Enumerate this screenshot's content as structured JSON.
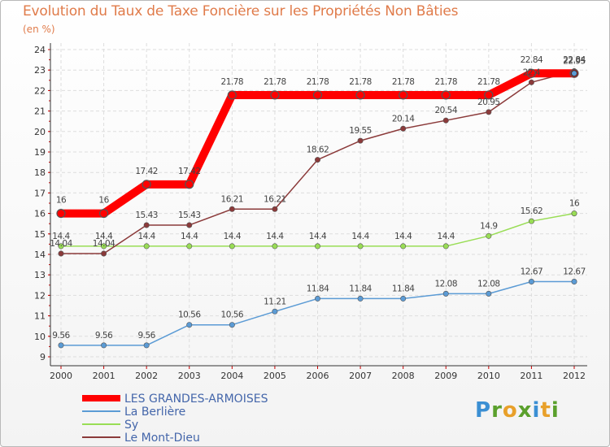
{
  "header": {
    "title": "Evolution du Taux de Taxe Foncière sur les Propriétés Non Bâties",
    "unit": "(en %)"
  },
  "logo": {
    "letters": [
      "P",
      "r",
      "o",
      "x",
      "i",
      "t",
      "i"
    ],
    "colors": [
      "#3b8fd3",
      "#5aa02c",
      "#e8a02a",
      "#5aa02c",
      "#3b8fd3",
      "#e8a02a",
      "#5aa02c"
    ]
  },
  "chart_data": {
    "type": "line",
    "title": "Evolution du Taux de Taxe Foncière sur les Propriétés Non Bâties",
    "ylabel": "(en %)",
    "xlabel": "",
    "categories": [
      "2000",
      "2001",
      "2002",
      "2003",
      "2004",
      "2005",
      "2006",
      "2007",
      "2008",
      "2009",
      "2010",
      "2011",
      "2012"
    ],
    "ylim": [
      9,
      24
    ],
    "yticks": [
      9,
      10,
      11,
      12,
      13,
      14,
      15,
      16,
      17,
      18,
      19,
      20,
      21,
      22,
      23,
      24
    ],
    "grid": true,
    "series": [
      {
        "name": "LES GRANDES-ARMOISES",
        "color": "#ff0000",
        "values": [
          16,
          16,
          17.42,
          17.42,
          21.78,
          21.78,
          21.78,
          21.78,
          21.78,
          21.78,
          21.78,
          22.84,
          22.84
        ],
        "labels": [
          "16",
          "16",
          "17.42",
          "17.42",
          "21.78",
          "21.78",
          "21.78",
          "21.78",
          "21.78",
          "21.78",
          "21.78",
          "22.84",
          "22.84"
        ]
      },
      {
        "name": "La Berlière",
        "color": "#5b9bd5",
        "values": [
          9.56,
          9.56,
          9.56,
          10.56,
          10.56,
          11.21,
          11.84,
          11.84,
          11.84,
          12.08,
          12.08,
          12.67,
          12.67
        ],
        "labels": [
          "9.56",
          "9.56",
          "9.56",
          "10.56",
          "10.56",
          "11.21",
          "11.84",
          "11.84",
          "11.84",
          "12.08",
          "12.08",
          "12.67",
          "12.67"
        ]
      },
      {
        "name": "Sy",
        "color": "#99dd55",
        "values": [
          14.4,
          14.4,
          14.4,
          14.4,
          14.4,
          14.4,
          14.4,
          14.4,
          14.4,
          14.4,
          14.9,
          15.62,
          16
        ],
        "labels": [
          "14.4",
          "14.4",
          "14.4",
          "14.4",
          "14.4",
          "14.4",
          "14.4",
          "14.4",
          "14.4",
          "14.4",
          "14.9",
          "15.62",
          "16"
        ]
      },
      {
        "name": "Le Mont-Dieu",
        "color": "#8b3a3a",
        "values": [
          14.04,
          14.04,
          15.43,
          15.43,
          16.21,
          16.21,
          18.62,
          19.55,
          20.14,
          20.54,
          20.95,
          22.4,
          22.95
        ],
        "labels": [
          "14.04",
          "14.04",
          "15.43",
          "15.43",
          "16.21",
          "16.21",
          "18.62",
          "19.55",
          "20.14",
          "20.54",
          "20.95",
          "22.4",
          "22.95"
        ]
      }
    ],
    "legend_position": "bottom-left"
  }
}
